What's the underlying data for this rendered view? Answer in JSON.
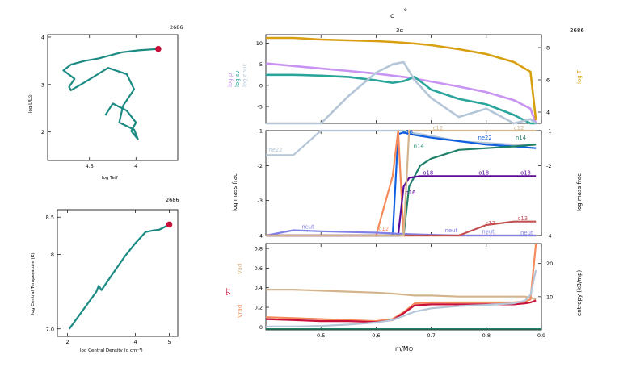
{
  "header": {
    "top_symbol": "c",
    "top_symbol_sup": "o",
    "subtitle": "3α",
    "model_number": "2686"
  },
  "colors": {
    "teal": "#1a8a82",
    "red_marker": "#c8103a",
    "lavender": "#c893f2",
    "teal_light": "#2aa59b",
    "steel": "#b4c6d8",
    "gold": "#d8a010",
    "salmon": "#f58a5a",
    "blue": "#1060e0",
    "purple": "#5b0a9a",
    "slate": "#8080e8",
    "brick": "#c25050",
    "tan": "#d4b48c",
    "darkteal": "#20806a"
  },
  "chart_data": [
    {
      "type": "line",
      "panel": "hr-diagram",
      "model_number": "2686",
      "xlabel": "log Teff",
      "ylabel": "log L/L⊙",
      "xlim": [
        4.95,
        3.55
      ],
      "ylim": [
        1.4,
        4.05
      ],
      "x_ticks": [
        4.5,
        4.0
      ],
      "x_tick_labels": [
        "4.5",
        "4"
      ],
      "y_ticks": [
        2,
        3,
        4
      ],
      "y_tick_labels": [
        "2",
        "3",
        "4"
      ],
      "track": {
        "x": [
          3.76,
          3.97,
          4.15,
          4.4,
          4.55,
          4.7,
          4.78,
          4.66,
          4.72,
          4.7,
          4.55,
          4.3,
          4.1,
          4.02,
          4.14,
          4.18,
          4.02,
          3.98,
          4.05,
          4.0,
          4.1,
          4.25,
          4.33
        ],
        "y": [
          3.75,
          3.72,
          3.68,
          3.55,
          3.5,
          3.42,
          3.3,
          3.12,
          2.95,
          2.88,
          3.05,
          3.35,
          3.22,
          2.9,
          2.55,
          2.2,
          2.05,
          1.85,
          2.02,
          2.2,
          2.45,
          2.6,
          2.35
        ]
      },
      "current_point": {
        "x": 3.76,
        "y": 3.75
      }
    },
    {
      "type": "line",
      "panel": "central-conditions",
      "model_number": "2686",
      "xlabel": "log Central Density (g cm⁻³)",
      "ylabel": "log Central Temperature (K)",
      "xlim": [
        1.7,
        5.25
      ],
      "ylim": [
        6.9,
        8.6
      ],
      "x_ticks": [
        2,
        4,
        5
      ],
      "x_tick_labels": [
        "2",
        "4",
        "5"
      ],
      "y_ticks": [
        7.0,
        8.0,
        8.5
      ],
      "y_tick_labels": [
        "7.0",
        "8",
        "8.5"
      ],
      "track": {
        "x": [
          2.05,
          2.5,
          2.85,
          2.92,
          3.0,
          3.3,
          3.7,
          4.0,
          4.3,
          4.5,
          4.7,
          5.0
        ],
        "y": [
          7.0,
          7.28,
          7.5,
          7.58,
          7.52,
          7.72,
          7.98,
          8.15,
          8.3,
          8.32,
          8.33,
          8.4
        ]
      },
      "current_point": {
        "x": 5.0,
        "y": 8.4
      }
    },
    {
      "type": "line",
      "panel": "profile-top",
      "model_number": "2686",
      "xlim": [
        0.4,
        0.9
      ],
      "ylim_left": [
        -9,
        12
      ],
      "ylim_right": [
        3.3,
        8.8
      ],
      "left_ticks": [
        -5,
        0,
        5,
        10
      ],
      "left_tick_labels": [
        "-5",
        "0",
        "5",
        "10"
      ],
      "right_ticks": [
        4,
        6,
        8
      ],
      "right_tick_labels": [
        "4",
        "6",
        "8"
      ],
      "left_labels": [
        "log ρ",
        "log εν",
        "log εnuc"
      ],
      "right_label": "log T",
      "x": [
        0.4,
        0.45,
        0.5,
        0.55,
        0.6,
        0.63,
        0.65,
        0.67,
        0.7,
        0.75,
        0.8,
        0.85,
        0.88,
        0.89
      ],
      "series": [
        {
          "name": "log ρ",
          "color": "#c893f2",
          "axis": "left",
          "values": [
            5.2,
            4.6,
            4.0,
            3.4,
            2.8,
            2.3,
            2.0,
            1.6,
            0.9,
            -0.3,
            -1.6,
            -3.5,
            -5.5,
            -9.5
          ]
        },
        {
          "name": "log εν",
          "color": "#2aa59b",
          "axis": "left",
          "values": [
            2.5,
            2.5,
            2.3,
            2.0,
            1.2,
            0.6,
            1.0,
            2.0,
            -1.0,
            -3.2,
            -4.5,
            -7.0,
            -9.5,
            -10.0
          ]
        },
        {
          "name": "log εnuc",
          "color": "#b4c6d8",
          "axis": "left",
          "values": [
            -10.0,
            -10.0,
            -9.0,
            -2.5,
            3.0,
            5.0,
            5.5,
            1.2,
            -3.0,
            -7.5,
            -5.5,
            -9.0,
            -8.0,
            -9.0
          ]
        },
        {
          "name": "log T",
          "color": "#d8a010",
          "axis": "right",
          "values": [
            8.6,
            8.6,
            8.5,
            8.45,
            8.4,
            8.35,
            8.3,
            8.25,
            8.15,
            7.9,
            7.6,
            7.1,
            6.5,
            3.5
          ]
        }
      ]
    },
    {
      "type": "line",
      "panel": "profile-mid",
      "model_number": "2686",
      "ylabel": "log mass frac",
      "xlim": [
        0.4,
        0.9
      ],
      "ylim": [
        -4,
        -1
      ],
      "left_ticks": [
        -4,
        -3,
        -2,
        -1
      ],
      "left_tick_labels": [
        "-4",
        "-3",
        "-2",
        "-1"
      ],
      "right_ticks": [
        -4,
        -2,
        -1
      ],
      "right_tick_labels": [
        "-4",
        "-2",
        "-1"
      ],
      "x": [
        0.4,
        0.45,
        0.5,
        0.55,
        0.6,
        0.63,
        0.64,
        0.65,
        0.66,
        0.68,
        0.7,
        0.75,
        0.8,
        0.85,
        0.89
      ],
      "series": [
        {
          "name": "ne22",
          "color": "#b4c6d8",
          "values": [
            -1.7,
            -1.7,
            -1.0,
            -1.0,
            -1.0,
            -1.0,
            -1.0,
            -1.0,
            -1.05,
            -1.1,
            -1.15,
            -1.3,
            -1.35,
            -1.4,
            -1.4
          ]
        },
        {
          "name": "o16",
          "color": "#1060e0",
          "values": [
            -4.5,
            -4.5,
            -4.5,
            -4.5,
            -4.5,
            -4.5,
            -1.1,
            -1.05,
            -1.1,
            -1.15,
            -1.2,
            -1.3,
            -1.4,
            -1.45,
            -1.5
          ]
        },
        {
          "name": "c12",
          "color": "#f58a5a",
          "values": [
            -4.5,
            -4.5,
            -4.5,
            -4.5,
            -4.0,
            -2.3,
            -1.0,
            -4.5,
            -4.5,
            -4.5,
            -4.5,
            -4.5,
            -4.5,
            -4.5,
            -4.5
          ]
        },
        {
          "name": "n14",
          "color": "#20806a",
          "values": [
            -4.5,
            -4.5,
            -4.5,
            -4.5,
            -4.5,
            -4.5,
            -4.5,
            -4.5,
            -2.6,
            -2.0,
            -1.8,
            -1.55,
            -1.5,
            -1.45,
            -1.4
          ]
        },
        {
          "name": "o18",
          "color": "#5b0a9a",
          "values": [
            -4.5,
            -4.5,
            -4.5,
            -4.5,
            -4.5,
            -4.5,
            -4.5,
            -2.6,
            -2.35,
            -2.3,
            -2.3,
            -2.3,
            -2.3,
            -2.3,
            -2.3
          ]
        },
        {
          "name": "neut",
          "color": "#8080e8",
          "values": [
            -4.5,
            -3.85,
            -3.88,
            -3.9,
            -3.92,
            -3.94,
            -3.95,
            -3.95,
            -3.96,
            -3.97,
            -3.98,
            -4.0,
            -4.0,
            -4.0,
            -4.0
          ]
        },
        {
          "name": "c13",
          "color": "#c25050",
          "values": [
            -4.5,
            -4.5,
            -4.5,
            -4.5,
            -4.5,
            -4.5,
            -4.5,
            -4.5,
            -4.5,
            -4.5,
            -4.5,
            -4.0,
            -3.7,
            -3.6,
            -3.6
          ]
        },
        {
          "name": "c12",
          "color": "#d4b48c",
          "values": [
            -4.5,
            -4.5,
            -4.5,
            -4.5,
            -4.5,
            -4.5,
            -4.5,
            -4.5,
            -1.0,
            -1.0,
            -1.0,
            -1.0,
            -1.0,
            -1.0,
            -1.0
          ]
        }
      ],
      "annotations": [
        "ne22",
        "o16",
        "c12",
        "n14",
        "o18",
        "o16",
        "neut",
        "c13",
        "o18",
        "o18",
        "ne22",
        "c12",
        "c12",
        "n14",
        "c13",
        "neut",
        "neut",
        "neut"
      ]
    },
    {
      "type": "line",
      "panel": "profile-bottom",
      "model_number": "2686",
      "xlabel": "m/M⊙",
      "xlim": [
        0.4,
        0.9
      ],
      "ylim_left": [
        -0.03,
        0.85
      ],
      "ylim_right": [
        0,
        26
      ],
      "x_ticks": [
        0.5,
        0.6,
        0.7,
        0.8,
        0.9
      ],
      "x_tick_labels": [
        "0.5",
        "0.6",
        "0.7",
        "0.8",
        "0.9"
      ],
      "left_ticks": [
        0,
        0.2,
        0.4,
        0.6,
        0.8
      ],
      "left_tick_labels": [
        "0",
        "0.2",
        "0.4",
        "0.6",
        "0.8"
      ],
      "right_ticks": [
        10,
        20
      ],
      "right_tick_labels": [
        "10",
        "20"
      ],
      "left_labels": [
        "∇ad",
        "∇T",
        "∇rad"
      ],
      "right_label": "entropy (kB/mp)",
      "x": [
        0.4,
        0.45,
        0.5,
        0.55,
        0.6,
        0.63,
        0.65,
        0.67,
        0.7,
        0.75,
        0.8,
        0.85,
        0.87,
        0.88,
        0.89
      ],
      "series": [
        {
          "name": "∇ad",
          "color": "#d4b48c",
          "axis": "left",
          "values": [
            0.38,
            0.38,
            0.37,
            0.36,
            0.35,
            0.34,
            0.33,
            0.32,
            0.32,
            0.31,
            0.31,
            0.31,
            0.31,
            0.3,
            0.28
          ]
        },
        {
          "name": "∇rad",
          "color": "#f58a5a",
          "axis": "left",
          "values": [
            0.1,
            0.09,
            0.08,
            0.07,
            0.06,
            0.08,
            0.15,
            0.24,
            0.25,
            0.25,
            0.25,
            0.25,
            0.26,
            0.28,
            0.85
          ]
        },
        {
          "name": "∇T",
          "color": "#c8103a",
          "axis": "left",
          "values": [
            0.08,
            0.07,
            0.06,
            0.06,
            0.05,
            0.07,
            0.14,
            0.22,
            0.23,
            0.23,
            0.23,
            0.23,
            0.24,
            0.25,
            0.27
          ]
        },
        {
          "name": "entropy",
          "color": "#b4c6d8",
          "axis": "right",
          "values": [
            1.0,
            1.0,
            1.2,
            1.6,
            2.2,
            3.0,
            4.2,
            5.5,
            6.5,
            7.2,
            7.5,
            8.0,
            8.8,
            10.5,
            18.0
          ]
        }
      ]
    }
  ]
}
